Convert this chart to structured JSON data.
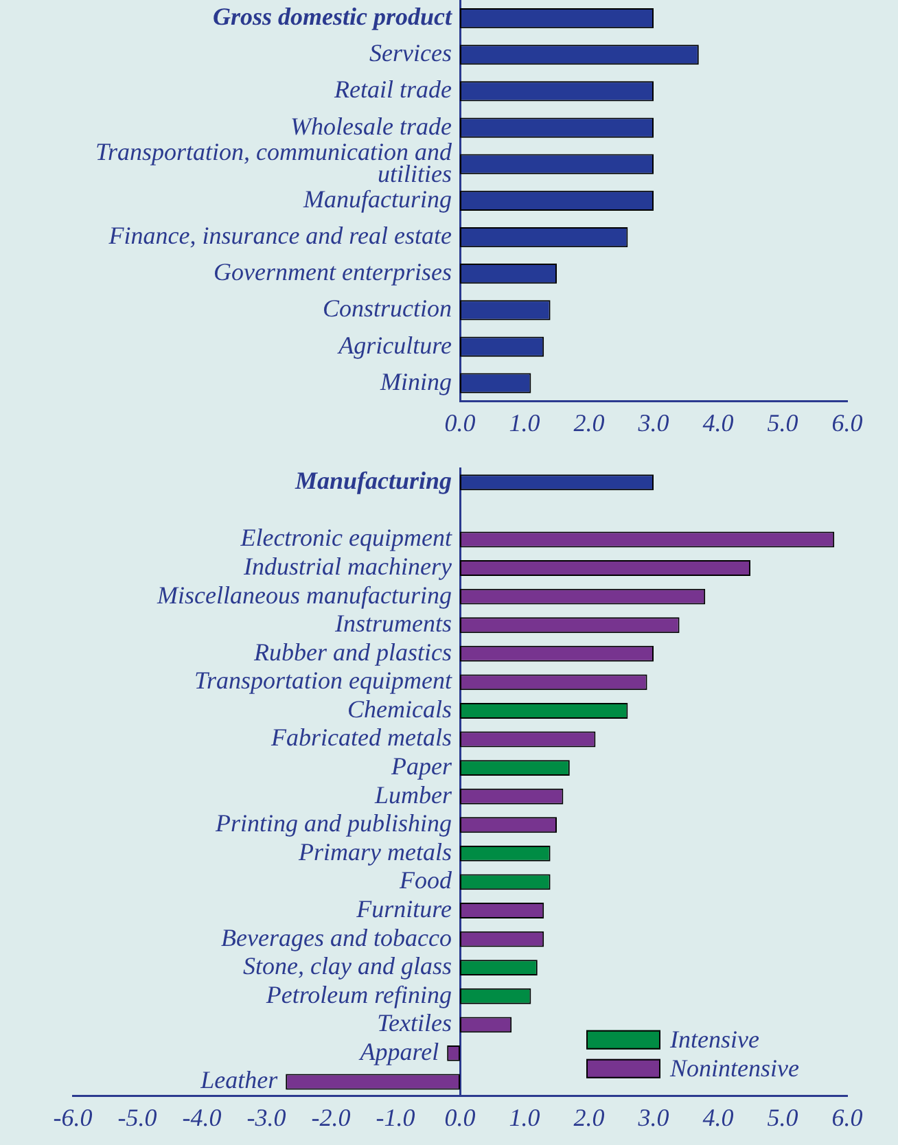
{
  "chart_data": [
    {
      "type": "bar",
      "orientation": "horizontal",
      "categories": [
        "Gross domestic product",
        "Services",
        "Retail trade",
        "Wholesale trade",
        "Transportation, communication and utilities",
        "Manufacturing",
        "Finance, insurance and real estate",
        "Government enterprises",
        "Construction",
        "Agriculture",
        "Mining"
      ],
      "values": [
        3.0,
        3.7,
        3.0,
        3.0,
        3.0,
        3.0,
        2.6,
        1.5,
        1.4,
        1.3,
        1.1
      ],
      "color": "#253a96",
      "xlim": [
        0,
        6
      ],
      "xticks": [
        {
          "value": 0,
          "label": "0.0"
        },
        {
          "value": 1,
          "label": "1.0"
        },
        {
          "value": 2,
          "label": "2.0"
        },
        {
          "value": 3,
          "label": "3.0"
        },
        {
          "value": 4,
          "label": "4.0"
        },
        {
          "value": 5,
          "label": "5.0"
        },
        {
          "value": 6,
          "label": "6.0"
        }
      ]
    },
    {
      "type": "bar",
      "orientation": "horizontal",
      "stacked": true,
      "legend": "bottom right",
      "categories": [
        "Manufacturing",
        null,
        "Electronic equipment",
        "Industrial machinery",
        "Miscellaneous manufacturing",
        "Instruments",
        "Rubber and plastics",
        "Transportation equipment",
        "Chemicals",
        "Fabricated metals",
        "Paper",
        "Lumber",
        "Printing and publishing",
        "Primary metals",
        "Food",
        "Furniture",
        "Beverages and tobacco",
        "Stone, clay and glass",
        "Petroleum refining",
        "Textiles",
        "Apparel",
        "Leather"
      ],
      "series": [
        {
          "color": "#253a96",
          "values": [
            3.0,
            null,
            null,
            null,
            null,
            null,
            null,
            null,
            null,
            null,
            null,
            null,
            null,
            null,
            null,
            null,
            null,
            null,
            null,
            null,
            null,
            null
          ]
        },
        {
          "name": "Intensive",
          "color": "#008c44",
          "values": [
            null,
            null,
            null,
            null,
            null,
            null,
            null,
            null,
            2.6,
            null,
            1.7,
            null,
            null,
            1.4,
            1.4,
            null,
            null,
            1.2,
            1.1,
            null,
            null,
            null
          ]
        },
        {
          "name": "Nonintensive",
          "color": "#77348f",
          "values": [
            null,
            null,
            5.8,
            4.5,
            3.8,
            3.4,
            3.0,
            2.9,
            null,
            2.1,
            null,
            1.6,
            1.5,
            null,
            null,
            1.3,
            1.3,
            null,
            null,
            0.8,
            -0.2,
            -2.7
          ]
        }
      ],
      "xlim": [
        -6,
        6
      ],
      "xticks": [
        {
          "value": -6,
          "label": "-6.0"
        },
        {
          "value": -5,
          "label": "-5.0"
        },
        {
          "value": -4,
          "label": "-4.0"
        },
        {
          "value": -3,
          "label": "-3.0"
        },
        {
          "value": -2,
          "label": "-2.0"
        },
        {
          "value": -1,
          "label": "-1.0"
        },
        {
          "value": 0,
          "label": "0.0"
        },
        {
          "value": 1,
          "label": "1.0"
        },
        {
          "value": 2,
          "label": "2.0"
        },
        {
          "value": 3,
          "label": "3.0"
        },
        {
          "value": 4,
          "label": "4.0"
        },
        {
          "value": 5,
          "label": "5.0"
        },
        {
          "value": 6,
          "label": "6.0"
        }
      ]
    }
  ]
}
